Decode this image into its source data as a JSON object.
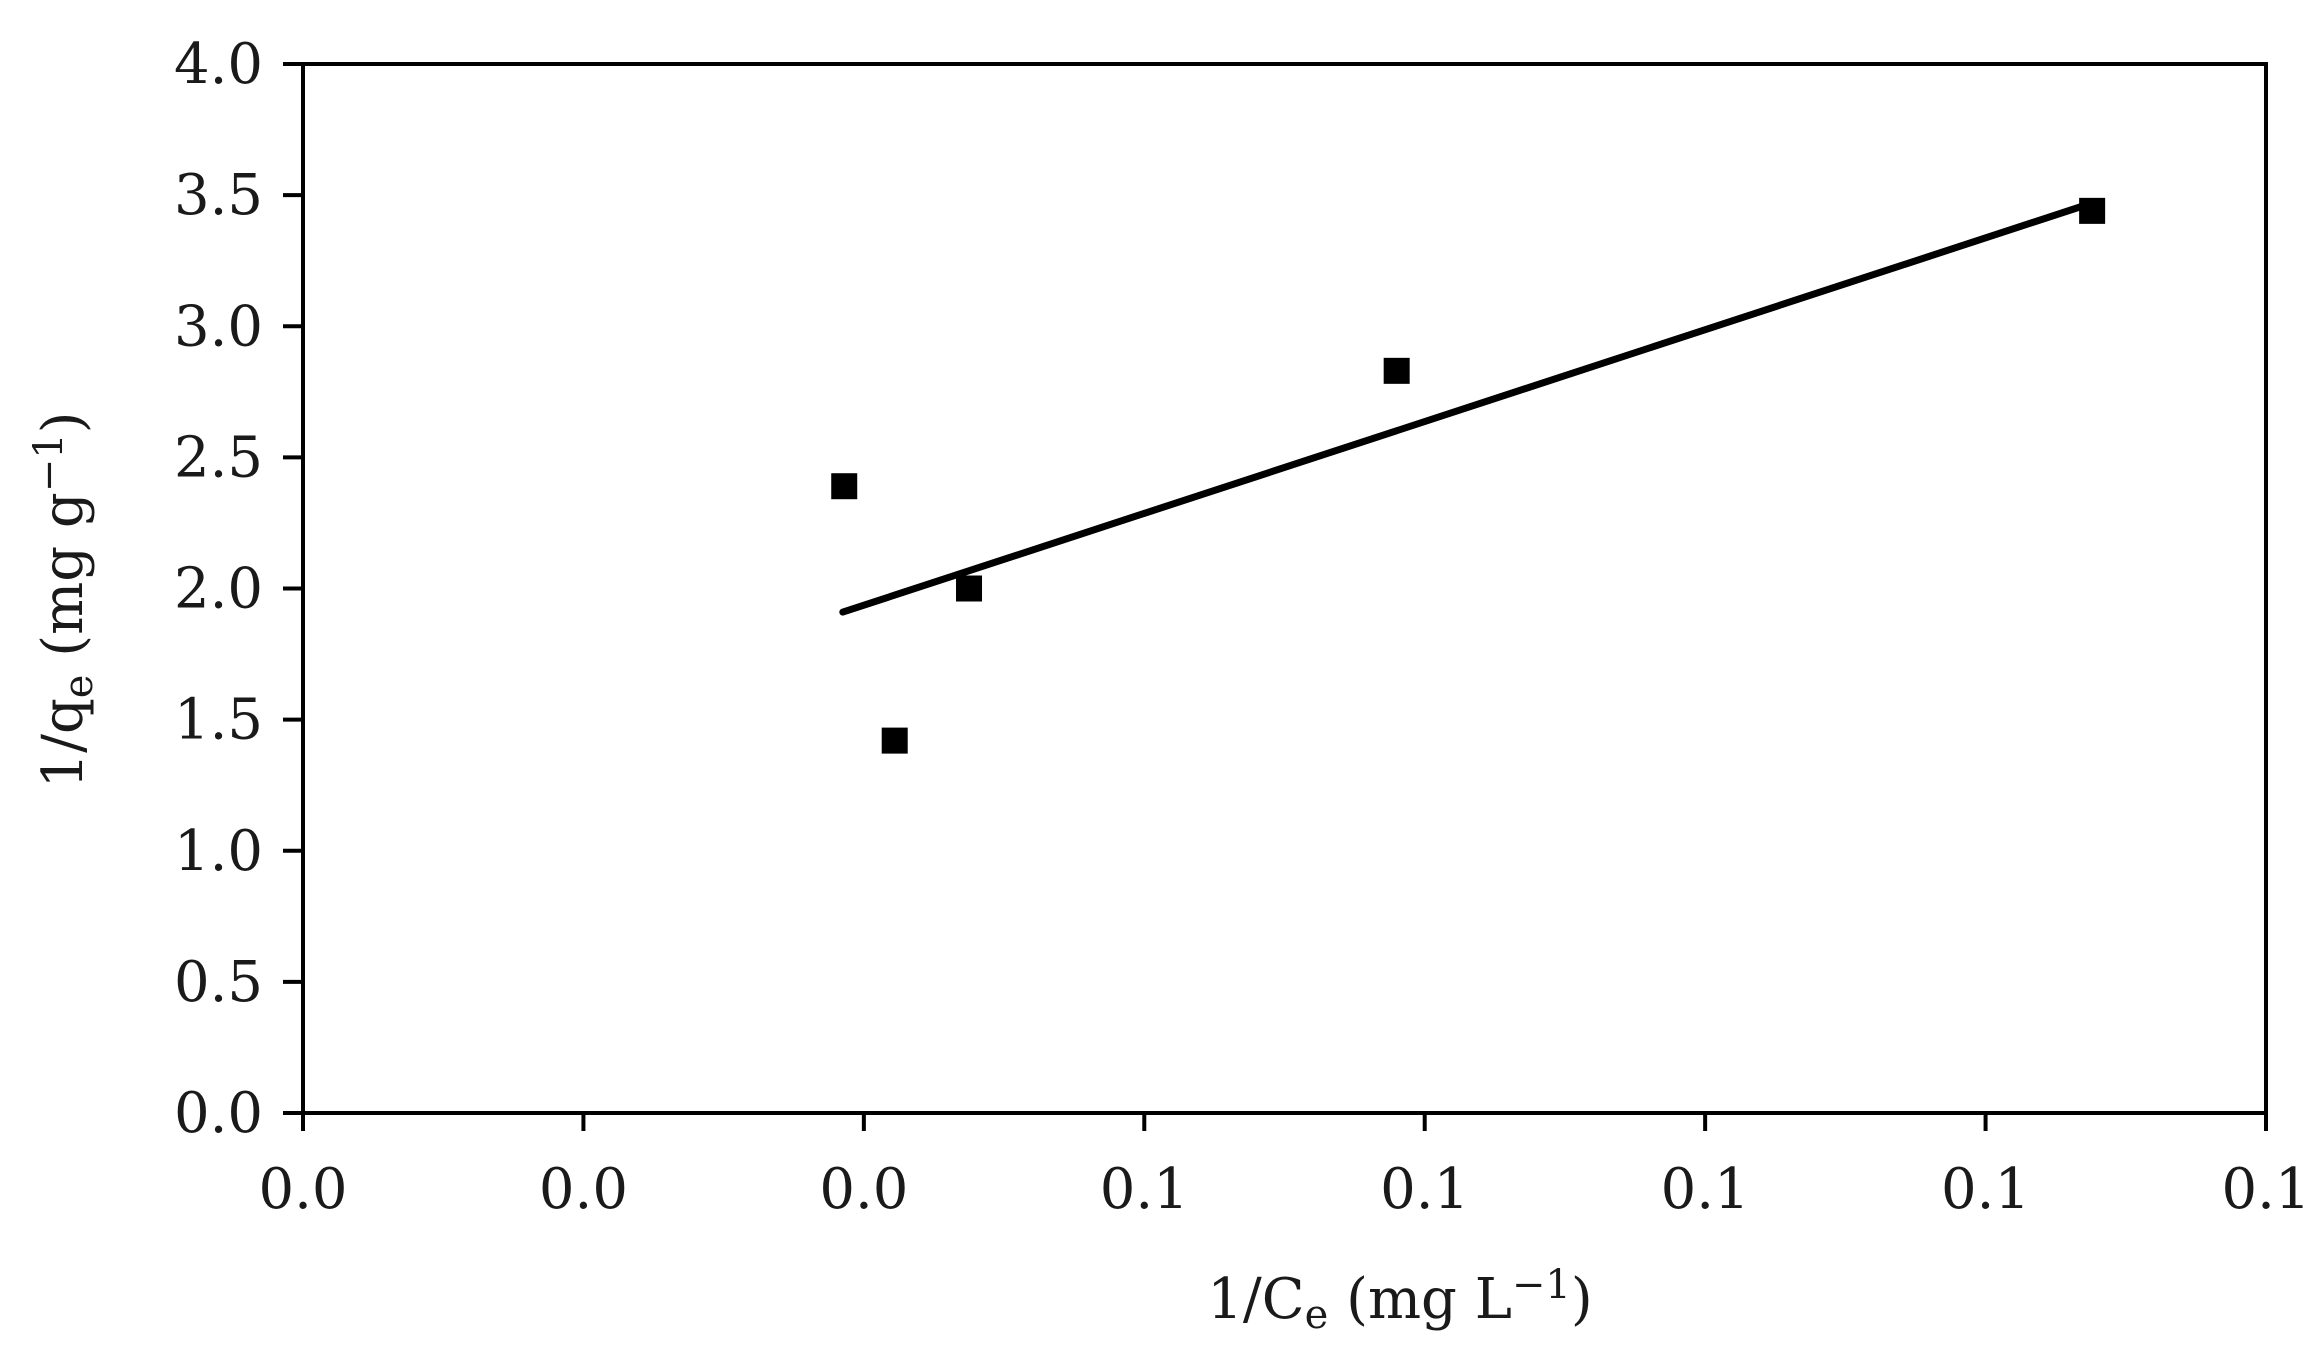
{
  "chart_data": {
    "type": "scatter",
    "title": "",
    "xlabel": {
      "prefix": "1/C",
      "sub": "e",
      "unit": " (mg L",
      "sup": "−1",
      "close": ")"
    },
    "ylabel": {
      "prefix": "1/q",
      "sub": "e",
      "unit": " (mg g",
      "sup": "−1",
      "close": ")"
    },
    "x_tick_labels": [
      "0.0",
      "0.0",
      "0.0",
      "0.1",
      "0.1",
      "0.1",
      "0.1",
      "0.1"
    ],
    "y_tick_labels": [
      "0.0",
      "0.5",
      "1.0",
      "1.5",
      "2.0",
      "2.5",
      "3.0",
      "3.5",
      "4.0"
    ],
    "xlim": [
      0.0,
      0.14
    ],
    "ylim": [
      0.0,
      4.0
    ],
    "x_tick_values": [
      0.0,
      0.02,
      0.04,
      0.06,
      0.08,
      0.1,
      0.12,
      0.14
    ],
    "y_tick_values": [
      0.0,
      0.5,
      1.0,
      1.5,
      2.0,
      2.5,
      3.0,
      3.5,
      4.0
    ],
    "grid": false,
    "legend": "none",
    "series": [
      {
        "marker": "square",
        "color": "#000000",
        "points": [
          {
            "x": 0.0386,
            "y": 2.39
          },
          {
            "x": 0.0422,
            "y": 1.42
          },
          {
            "x": 0.0475,
            "y": 2.0
          },
          {
            "x": 0.078,
            "y": 2.83
          },
          {
            "x": 0.1276,
            "y": 3.44
          }
        ]
      }
    ],
    "trendline": {
      "color": "#000000",
      "x": [
        0.0385,
        0.1276
      ],
      "y": [
        1.91,
        3.47
      ]
    }
  }
}
